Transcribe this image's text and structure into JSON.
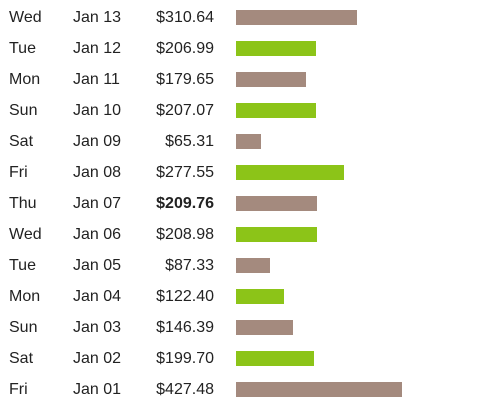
{
  "colors": {
    "weekday": "#a48a7e",
    "alternate": "#8cc418"
  },
  "chart_data": {
    "type": "bar",
    "orientation": "horizontal",
    "title": "",
    "xlabel": "",
    "ylabel": "",
    "grid": false,
    "legend": "none",
    "xlim": [
      0,
      520
    ],
    "rows": [
      {
        "day": "Wed",
        "date": "Jan 13",
        "label": "$310.64",
        "value": 310.64,
        "color": "#a48a7e",
        "bold": false
      },
      {
        "day": "Tue",
        "date": "Jan 12",
        "label": "$206.99",
        "value": 206.99,
        "color": "#8cc418",
        "bold": false
      },
      {
        "day": "Mon",
        "date": "Jan 11",
        "label": "$179.65",
        "value": 179.65,
        "color": "#a48a7e",
        "bold": false
      },
      {
        "day": "Sun",
        "date": "Jan 10",
        "label": "$207.07",
        "value": 207.07,
        "color": "#8cc418",
        "bold": false
      },
      {
        "day": "Sat",
        "date": "Jan 09",
        "label": "$65.31",
        "value": 65.31,
        "color": "#a48a7e",
        "bold": false
      },
      {
        "day": "Fri",
        "date": "Jan 08",
        "label": "$277.55",
        "value": 277.55,
        "color": "#8cc418",
        "bold": false
      },
      {
        "day": "Thu",
        "date": "Jan 07",
        "label": "$209.76",
        "value": 209.76,
        "color": "#a48a7e",
        "bold": true
      },
      {
        "day": "Wed",
        "date": "Jan 06",
        "label": "$208.98",
        "value": 208.98,
        "color": "#8cc418",
        "bold": false
      },
      {
        "day": "Tue",
        "date": "Jan 05",
        "label": "$87.33",
        "value": 87.33,
        "color": "#a48a7e",
        "bold": false
      },
      {
        "day": "Mon",
        "date": "Jan 04",
        "label": "$122.40",
        "value": 122.4,
        "color": "#8cc418",
        "bold": false
      },
      {
        "day": "Sun",
        "date": "Jan 03",
        "label": "$146.39",
        "value": 146.39,
        "color": "#a48a7e",
        "bold": false
      },
      {
        "day": "Sat",
        "date": "Jan 02",
        "label": "$199.70",
        "value": 199.7,
        "color": "#8cc418",
        "bold": false
      },
      {
        "day": "Fri",
        "date": "Jan 01",
        "label": "$427.48",
        "value": 427.48,
        "color": "#a48a7e",
        "bold": false
      }
    ]
  }
}
